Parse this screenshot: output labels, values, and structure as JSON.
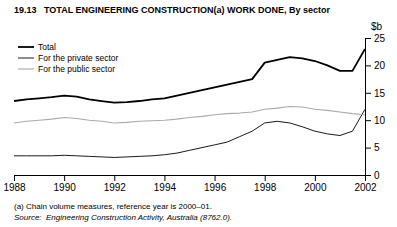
{
  "chart_data": {
    "type": "line",
    "title": "19.13   TOTAL ENGINEERING CONSTRUCTION(a) WORK DONE, By sector",
    "ylabel": "$b",
    "annotations": [
      "(a) Chain volume measures, reference year is 2000–01.",
      "Source:  Engineering Construction Activity, Australia (8762.0)."
    ],
    "x": [
      1988,
      1988.5,
      1989,
      1989.5,
      1990,
      1990.5,
      1991,
      1991.5,
      1992,
      1992.5,
      1993,
      1993.5,
      1994,
      1994.5,
      1995,
      1995.5,
      1996,
      1996.5,
      1997,
      1997.5,
      1998,
      1998.5,
      1999,
      1999.5,
      2000,
      2000.5,
      2001,
      2001.5,
      2002
    ],
    "series": [
      {
        "name": "Total",
        "color": "#000000",
        "values": [
          13.5,
          13.8,
          14.0,
          14.2,
          14.5,
          14.3,
          13.8,
          13.5,
          13.2,
          13.3,
          13.5,
          13.8,
          14.0,
          14.5,
          15.0,
          15.5,
          16.0,
          16.5,
          17.0,
          17.5,
          20.5,
          21.0,
          21.5,
          21.3,
          20.8,
          20.0,
          19.0,
          19.0,
          23.0
        ]
      },
      {
        "name": "For the private sector",
        "color": "#000000",
        "values": [
          3.5,
          3.5,
          3.5,
          3.5,
          3.6,
          3.5,
          3.4,
          3.3,
          3.2,
          3.3,
          3.4,
          3.5,
          3.7,
          4.0,
          4.5,
          5.0,
          5.5,
          6.0,
          7.0,
          8.0,
          9.5,
          9.8,
          9.5,
          8.8,
          8.0,
          7.5,
          7.2,
          8.0,
          12.0
        ]
      },
      {
        "name": "For the public sector",
        "color": "#aaaaaa",
        "values": [
          9.5,
          9.8,
          10.0,
          10.2,
          10.5,
          10.3,
          10.0,
          9.8,
          9.5,
          9.6,
          9.8,
          9.9,
          10.0,
          10.2,
          10.5,
          10.7,
          11.0,
          11.2,
          11.3,
          11.5,
          12.0,
          12.2,
          12.5,
          12.4,
          12.0,
          11.8,
          11.5,
          11.2,
          11.0
        ]
      }
    ],
    "xlim": [
      1988,
      2002
    ],
    "ylim": [
      0,
      25
    ],
    "xticks": [
      1988,
      1990,
      1992,
      1994,
      1996,
      1998,
      2000,
      2002
    ],
    "yticks": [
      0,
      5,
      10,
      15,
      20,
      25
    ],
    "legend": "upper left",
    "grid": false
  }
}
